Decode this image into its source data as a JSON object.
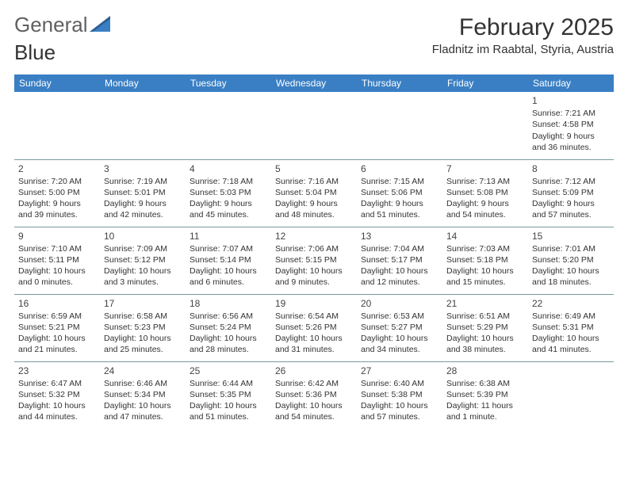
{
  "brand": {
    "name_part1": "General",
    "name_part2": "Blue",
    "gray_color": "#606060",
    "blue_color": "#3a7fc4"
  },
  "title": "February 2025",
  "location": "Fladnitz im Raabtal, Styria, Austria",
  "colors": {
    "header_bg": "#3a7fc4",
    "header_text": "#ffffff",
    "row_divider": "#7a9a9a",
    "body_text": "#333333",
    "page_bg": "#ffffff"
  },
  "day_headers": [
    "Sunday",
    "Monday",
    "Tuesday",
    "Wednesday",
    "Thursday",
    "Friday",
    "Saturday"
  ],
  "weeks": [
    [
      null,
      null,
      null,
      null,
      null,
      null,
      {
        "n": "1",
        "sunrise": "7:21 AM",
        "sunset": "4:58 PM",
        "daylight": "9 hours and 36 minutes."
      }
    ],
    [
      {
        "n": "2",
        "sunrise": "7:20 AM",
        "sunset": "5:00 PM",
        "daylight": "9 hours and 39 minutes."
      },
      {
        "n": "3",
        "sunrise": "7:19 AM",
        "sunset": "5:01 PM",
        "daylight": "9 hours and 42 minutes."
      },
      {
        "n": "4",
        "sunrise": "7:18 AM",
        "sunset": "5:03 PM",
        "daylight": "9 hours and 45 minutes."
      },
      {
        "n": "5",
        "sunrise": "7:16 AM",
        "sunset": "5:04 PM",
        "daylight": "9 hours and 48 minutes."
      },
      {
        "n": "6",
        "sunrise": "7:15 AM",
        "sunset": "5:06 PM",
        "daylight": "9 hours and 51 minutes."
      },
      {
        "n": "7",
        "sunrise": "7:13 AM",
        "sunset": "5:08 PM",
        "daylight": "9 hours and 54 minutes."
      },
      {
        "n": "8",
        "sunrise": "7:12 AM",
        "sunset": "5:09 PM",
        "daylight": "9 hours and 57 minutes."
      }
    ],
    [
      {
        "n": "9",
        "sunrise": "7:10 AM",
        "sunset": "5:11 PM",
        "daylight": "10 hours and 0 minutes."
      },
      {
        "n": "10",
        "sunrise": "7:09 AM",
        "sunset": "5:12 PM",
        "daylight": "10 hours and 3 minutes."
      },
      {
        "n": "11",
        "sunrise": "7:07 AM",
        "sunset": "5:14 PM",
        "daylight": "10 hours and 6 minutes."
      },
      {
        "n": "12",
        "sunrise": "7:06 AM",
        "sunset": "5:15 PM",
        "daylight": "10 hours and 9 minutes."
      },
      {
        "n": "13",
        "sunrise": "7:04 AM",
        "sunset": "5:17 PM",
        "daylight": "10 hours and 12 minutes."
      },
      {
        "n": "14",
        "sunrise": "7:03 AM",
        "sunset": "5:18 PM",
        "daylight": "10 hours and 15 minutes."
      },
      {
        "n": "15",
        "sunrise": "7:01 AM",
        "sunset": "5:20 PM",
        "daylight": "10 hours and 18 minutes."
      }
    ],
    [
      {
        "n": "16",
        "sunrise": "6:59 AM",
        "sunset": "5:21 PM",
        "daylight": "10 hours and 21 minutes."
      },
      {
        "n": "17",
        "sunrise": "6:58 AM",
        "sunset": "5:23 PM",
        "daylight": "10 hours and 25 minutes."
      },
      {
        "n": "18",
        "sunrise": "6:56 AM",
        "sunset": "5:24 PM",
        "daylight": "10 hours and 28 minutes."
      },
      {
        "n": "19",
        "sunrise": "6:54 AM",
        "sunset": "5:26 PM",
        "daylight": "10 hours and 31 minutes."
      },
      {
        "n": "20",
        "sunrise": "6:53 AM",
        "sunset": "5:27 PM",
        "daylight": "10 hours and 34 minutes."
      },
      {
        "n": "21",
        "sunrise": "6:51 AM",
        "sunset": "5:29 PM",
        "daylight": "10 hours and 38 minutes."
      },
      {
        "n": "22",
        "sunrise": "6:49 AM",
        "sunset": "5:31 PM",
        "daylight": "10 hours and 41 minutes."
      }
    ],
    [
      {
        "n": "23",
        "sunrise": "6:47 AM",
        "sunset": "5:32 PM",
        "daylight": "10 hours and 44 minutes."
      },
      {
        "n": "24",
        "sunrise": "6:46 AM",
        "sunset": "5:34 PM",
        "daylight": "10 hours and 47 minutes."
      },
      {
        "n": "25",
        "sunrise": "6:44 AM",
        "sunset": "5:35 PM",
        "daylight": "10 hours and 51 minutes."
      },
      {
        "n": "26",
        "sunrise": "6:42 AM",
        "sunset": "5:36 PM",
        "daylight": "10 hours and 54 minutes."
      },
      {
        "n": "27",
        "sunrise": "6:40 AM",
        "sunset": "5:38 PM",
        "daylight": "10 hours and 57 minutes."
      },
      {
        "n": "28",
        "sunrise": "6:38 AM",
        "sunset": "5:39 PM",
        "daylight": "11 hours and 1 minute."
      },
      null
    ]
  ],
  "labels": {
    "sunrise": "Sunrise: ",
    "sunset": "Sunset: ",
    "daylight": "Daylight: "
  }
}
